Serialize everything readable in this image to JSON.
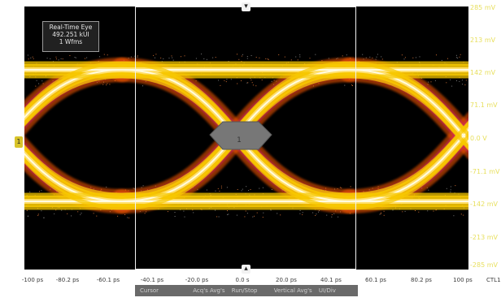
{
  "info_box": {
    "title": "Real-Time Eye",
    "line1": "492.251 kUI",
    "line2": "1 Wfms"
  },
  "y_axis": {
    "labels": [
      "285 mV",
      "213 mV",
      "142 mV",
      "71.1 mV",
      "0.0 V",
      "-71.1 mV",
      "-142 mV",
      "-213 mV",
      "-285 mV"
    ],
    "color": "#e8e060"
  },
  "x_axis": {
    "labels": [
      "-100 ps",
      "-80.2 ps",
      "-60.1 ps",
      "-40.1 ps",
      "-20.0 ps",
      "0.0 s",
      "20.0 ps",
      "40.1 ps",
      "60.1 ps",
      "80.2 ps",
      "100 ps"
    ],
    "unit": "CTL1"
  },
  "mask": {
    "label": "1"
  },
  "status_bar": {
    "left": "Cursor",
    "items": [
      "Acq's Avg's",
      "Run/Stop",
      "Vertical Avg's",
      "UI/Div"
    ]
  },
  "channel_marker": {
    "label": "1"
  },
  "cursor_handles": {
    "top_icon": "arrow-down-icon",
    "bottom_icon": "arrow-up-icon"
  },
  "colors": {
    "background": "#000000",
    "trace_hot": "#fffbe0",
    "trace_mid": "#f7c800",
    "trace_edge": "#ff5a00",
    "trace_rare": "#d0206a",
    "mask": "#777777"
  }
}
